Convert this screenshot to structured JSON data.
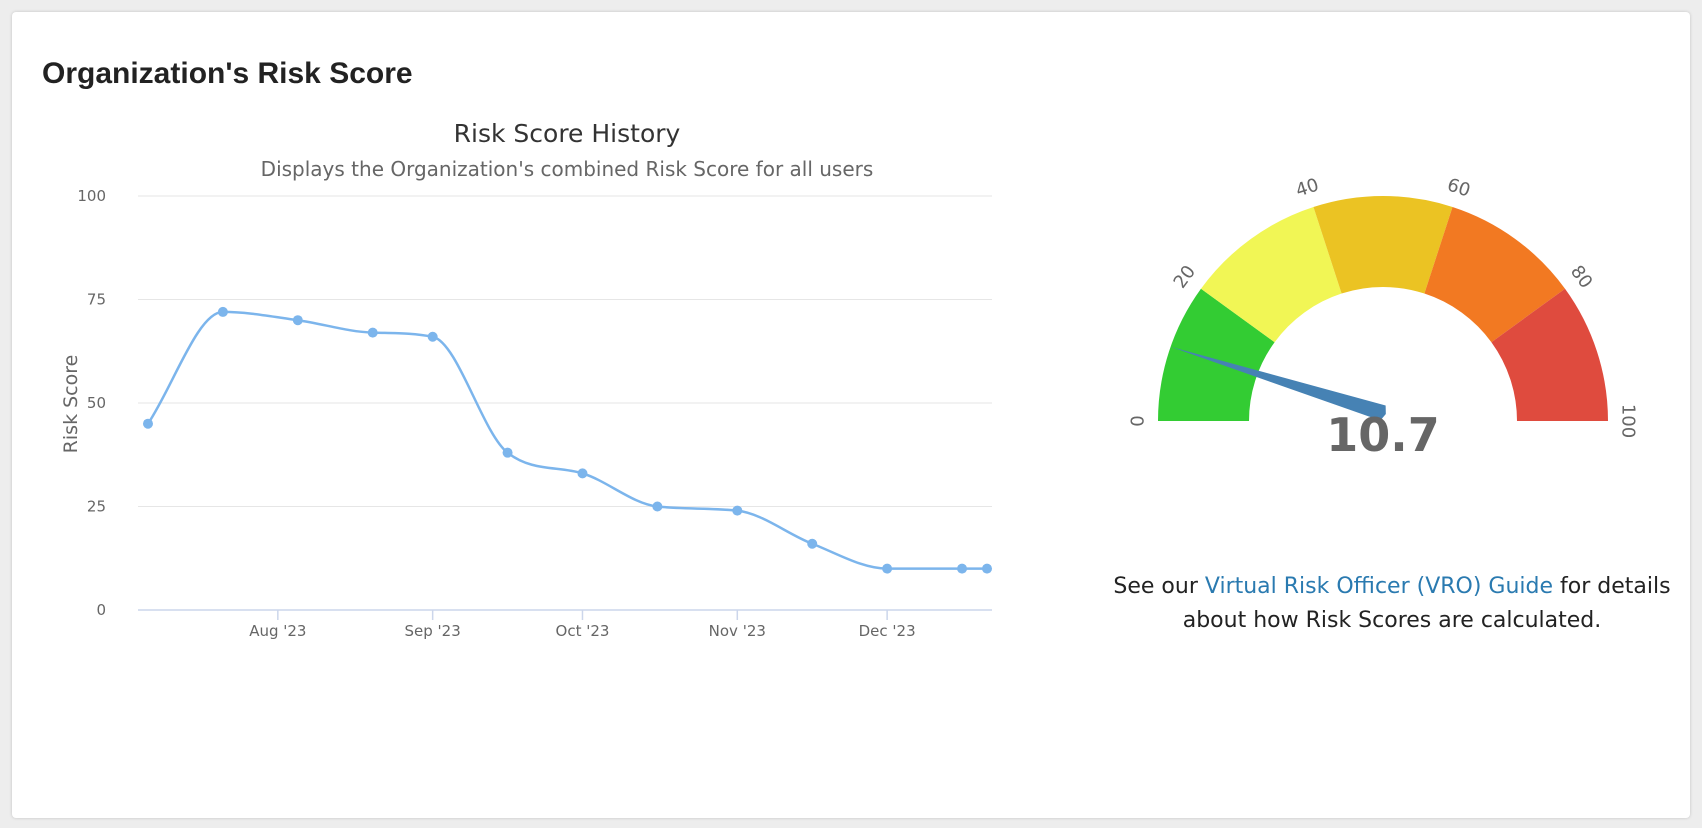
{
  "card": {
    "title": "Organization's Risk Score"
  },
  "chart_data": [
    {
      "type": "line",
      "title": "Risk Score History",
      "subtitle": "Displays the Organization's combined Risk Score for all users",
      "xlabel": "",
      "ylabel": "Risk Score",
      "ylim": [
        0,
        100
      ],
      "yticks": [
        0,
        25,
        50,
        75,
        100
      ],
      "xticks": [
        {
          "label": "Aug '23",
          "date": "2023-08-01"
        },
        {
          "label": "Sep '23",
          "date": "2023-09-01"
        },
        {
          "label": "Oct '23",
          "date": "2023-10-01"
        },
        {
          "label": "Nov '23",
          "date": "2023-11-01"
        },
        {
          "label": "Dec '23",
          "date": "2023-12-01"
        }
      ],
      "xlim": [
        "2023-07-04",
        "2023-12-22"
      ],
      "grid": true,
      "color": "#7cb5ec",
      "series": [
        {
          "x": [
            "2023-07-06",
            "2023-07-21",
            "2023-08-05",
            "2023-08-20",
            "2023-09-01",
            "2023-09-16",
            "2023-10-01",
            "2023-10-16",
            "2023-11-01",
            "2023-11-16",
            "2023-12-01",
            "2023-12-16",
            "2023-12-21"
          ],
          "y": [
            45,
            72,
            70,
            67,
            66,
            38,
            33,
            25,
            24,
            16,
            10,
            10,
            10
          ]
        }
      ]
    },
    {
      "type": "gauge",
      "value": 10.7,
      "value_label": "10.7",
      "min": 0,
      "max": 100,
      "ticks": [
        0,
        20,
        40,
        60,
        80,
        100
      ],
      "bands": [
        {
          "from": 0,
          "to": 20,
          "color": "#33cc33"
        },
        {
          "from": 20,
          "to": 40,
          "color": "#f1f655"
        },
        {
          "from": 40,
          "to": 60,
          "color": "#ebc323"
        },
        {
          "from": 60,
          "to": 80,
          "color": "#f27922"
        },
        {
          "from": 80,
          "to": 100,
          "color": "#df4b3e"
        }
      ],
      "needle_color": "#4682b4"
    }
  ],
  "guide": {
    "before": "See our ",
    "link": "Virtual Risk Officer (VRO) Guide",
    "after": " for details about how Risk Scores are calculated."
  }
}
